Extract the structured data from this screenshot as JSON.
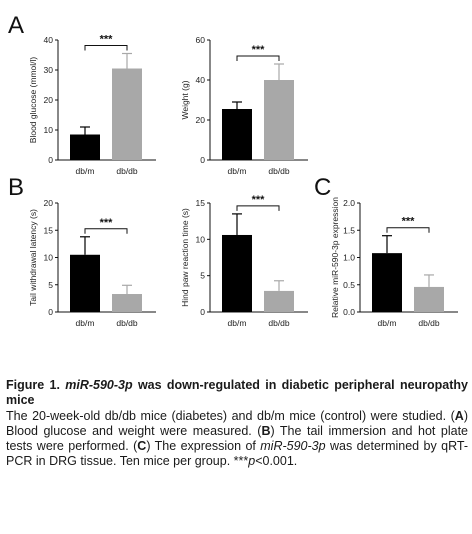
{
  "chart_data": [
    {
      "panel": "A",
      "type": "bar",
      "categories": [
        "db/m",
        "db/db"
      ],
      "values": [
        8.5,
        30.5
      ],
      "errors": [
        2.5,
        5.0
      ],
      "colors": [
        "#000000",
        "#a8a8a8"
      ],
      "ylabel": "Blood glucose (mmol/l)",
      "ylim": [
        0,
        40
      ],
      "yticks": [
        "0",
        "10",
        "20",
        "30",
        "40"
      ],
      "significance": "***"
    },
    {
      "panel": "",
      "type": "bar",
      "categories": [
        "db/m",
        "db/db"
      ],
      "values": [
        25.5,
        40.0
      ],
      "errors": [
        3.5,
        8.0
      ],
      "colors": [
        "#000000",
        "#a8a8a8"
      ],
      "ylabel": "Weight (g)",
      "ylim": [
        0,
        60
      ],
      "yticks": [
        "0",
        "20",
        "40",
        "60"
      ],
      "significance": "***"
    },
    {
      "panel": "B",
      "type": "bar",
      "categories": [
        "db/m",
        "db/db"
      ],
      "values": [
        10.5,
        3.3
      ],
      "errors": [
        3.3,
        1.6
      ],
      "colors": [
        "#000000",
        "#a8a8a8"
      ],
      "ylabel": "Tail withdrawal latency (s)",
      "ylim": [
        0,
        20
      ],
      "yticks": [
        "0",
        "5",
        "10",
        "15",
        "20"
      ],
      "significance": "***"
    },
    {
      "panel": "",
      "type": "bar",
      "categories": [
        "db/m",
        "db/db"
      ],
      "values": [
        10.6,
        2.9
      ],
      "errors": [
        2.9,
        1.4
      ],
      "colors": [
        "#000000",
        "#a8a8a8"
      ],
      "ylabel": "Hind paw reaction time (s)",
      "ylim": [
        0,
        15
      ],
      "yticks": [
        "0",
        "5",
        "10",
        "15"
      ],
      "significance": "***"
    },
    {
      "panel": "C",
      "type": "bar",
      "categories": [
        "db/m",
        "db/db"
      ],
      "values": [
        1.08,
        0.46
      ],
      "errors": [
        0.32,
        0.22
      ],
      "colors": [
        "#000000",
        "#a8a8a8"
      ],
      "ylabel": "Relative miR-590-3p expression",
      "ylim": [
        0,
        2.0
      ],
      "yticks": [
        "0.0",
        "0.5",
        "1.0",
        "1.5",
        "2.0"
      ],
      "significance": "***"
    }
  ],
  "caption": {
    "figure_label": "Figure 1.",
    "title_italic": "miR-590-3p",
    "title_rest": " was down-regulated in diabetic peripheral neuropathy mice",
    "body_1": "The 20-week-old db/db mice (diabetes) and db/m mice (control) were studied. (",
    "letter_a": "A",
    "body_2": ") Blood glucose and weight were measured. (",
    "letter_b": "B",
    "body_3": ") The tail immersion and hot plate tests were performed. (",
    "letter_c": "C",
    "body_4": ") The expression of ",
    "body_italic": "miR-590-3p",
    "body_5": " was determined by qRT-PCR in DRG tissue. Ten mice per group. ***",
    "p_italic": "p",
    "body_6": "<0.001."
  }
}
